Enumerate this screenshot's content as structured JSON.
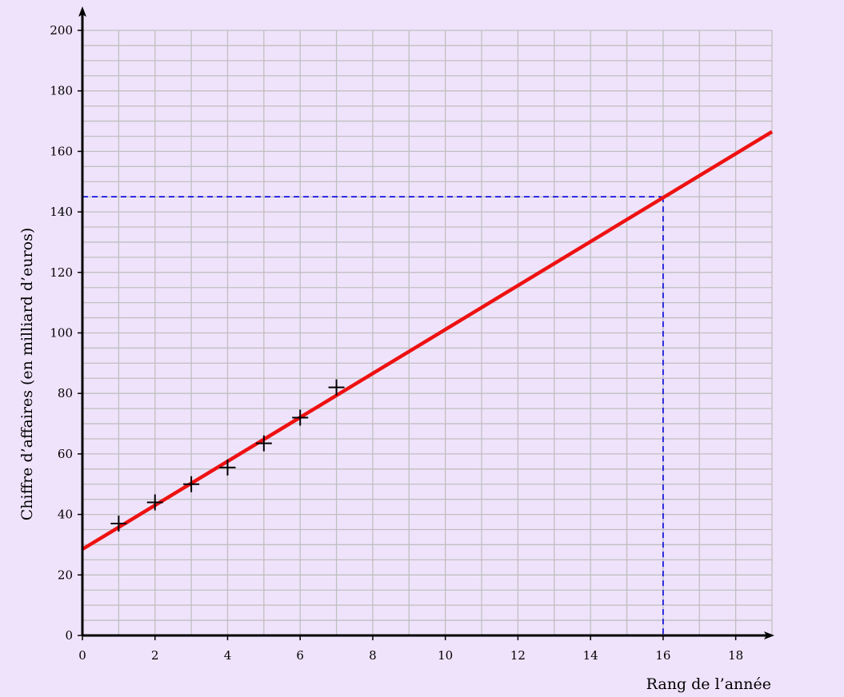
{
  "chart_data": {
    "type": "scatter",
    "title": "",
    "xlabel": "Rang de l’année",
    "ylabel": "Chiffre d’affaires (en milliard d’euros)",
    "xlim": [
      0,
      19
    ],
    "ylim": [
      0,
      200
    ],
    "x_ticks": [
      0,
      2,
      4,
      6,
      8,
      10,
      12,
      14,
      16,
      18
    ],
    "y_ticks": [
      0,
      20,
      40,
      60,
      80,
      100,
      120,
      140,
      160,
      180,
      200
    ],
    "grid": true,
    "points": [
      {
        "x": 1,
        "y": 37
      },
      {
        "x": 2,
        "y": 44
      },
      {
        "x": 3,
        "y": 50
      },
      {
        "x": 4,
        "y": 55.5
      },
      {
        "x": 5,
        "y": 63.5
      },
      {
        "x": 6,
        "y": 72
      },
      {
        "x": 7,
        "y": 82
      }
    ],
    "regression_line": {
      "x0": 0,
      "y0": 28.5,
      "x1": 19,
      "y1": 166.5
    },
    "projection": {
      "x": 16,
      "y": 145
    },
    "colors": {
      "background": "#efe3fb",
      "grid": "#bfbfbf",
      "line": "#ee1111",
      "projection": "#0000dd",
      "points": "#000000",
      "axes": "#000000"
    }
  }
}
